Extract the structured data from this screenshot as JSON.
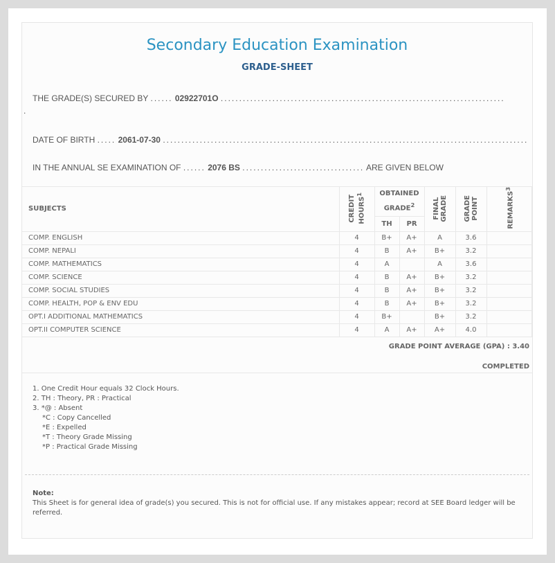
{
  "title": "Secondary Education Examination",
  "subtitle": "GRADE-SHEET",
  "secured_by": {
    "label": "THE GRADE(S) SECURED BY",
    "value": "02922701O"
  },
  "dob": {
    "label": "DATE OF BIRTH",
    "value": "2061-07-30"
  },
  "exam": {
    "label": "IN THE ANNUAL SE EXAMINATION OF",
    "value": "2076 BS",
    "suffix": "ARE GIVEN BELOW"
  },
  "table": {
    "headers": {
      "subjects": "SUBJECTS",
      "credit": "CREDIT HOURS",
      "credit_sup": "1",
      "obtained": "OBTAINED GRADE",
      "obtained_sup": "2",
      "th": "TH",
      "pr": "PR",
      "final": "FINAL GRADE",
      "gp": "GRADE POINT",
      "remarks": "REMARKS",
      "remarks_sup": "3"
    },
    "rows": [
      {
        "subject": "COMP. ENGLISH",
        "credit": "4",
        "th": "B+",
        "pr": "A+",
        "final": "A",
        "gp": "3.6",
        "remarks": ""
      },
      {
        "subject": "COMP. NEPALI",
        "credit": "4",
        "th": "B",
        "pr": "A+",
        "final": "B+",
        "gp": "3.2",
        "remarks": ""
      },
      {
        "subject": "COMP. MATHEMATICS",
        "credit": "4",
        "th": "A",
        "pr": "",
        "final": "A",
        "gp": "3.6",
        "remarks": ""
      },
      {
        "subject": "COMP. SCIENCE",
        "credit": "4",
        "th": "B",
        "pr": "A+",
        "final": "B+",
        "gp": "3.2",
        "remarks": ""
      },
      {
        "subject": "COMP. SOCIAL STUDIES",
        "credit": "4",
        "th": "B",
        "pr": "A+",
        "final": "B+",
        "gp": "3.2",
        "remarks": ""
      },
      {
        "subject": "COMP. HEALTH, POP & ENV EDU",
        "credit": "4",
        "th": "B",
        "pr": "A+",
        "final": "B+",
        "gp": "3.2",
        "remarks": ""
      },
      {
        "subject": "OPT.I ADDITIONAL MATHEMATICS",
        "credit": "4",
        "th": "B+",
        "pr": "",
        "final": "B+",
        "gp": "3.2",
        "remarks": ""
      },
      {
        "subject": "OPT.II COMPUTER SCIENCE",
        "credit": "4",
        "th": "A",
        "pr": "A+",
        "final": "A+",
        "gp": "4.0",
        "remarks": ""
      }
    ]
  },
  "gpa": "GRADE POINT AVERAGE (GPA) : 3.40",
  "status": "COMPLETED",
  "footnotes": [
    "1. One Credit Hour equals 32 Clock Hours.",
    "2. TH : Theory, PR : Practical",
    "3. *@ : Absent"
  ],
  "remark_codes": [
    "*C : Copy Cancelled",
    "*E : Expelled",
    "*T : Theory Grade Missing",
    "*P : Practical Grade Missing"
  ],
  "note": {
    "label": "Note:",
    "text": "This Sheet is for general idea of grade(s) you secured. This is not for official use. If any mistakes appear; record at SEE Board ledger will be referred."
  }
}
